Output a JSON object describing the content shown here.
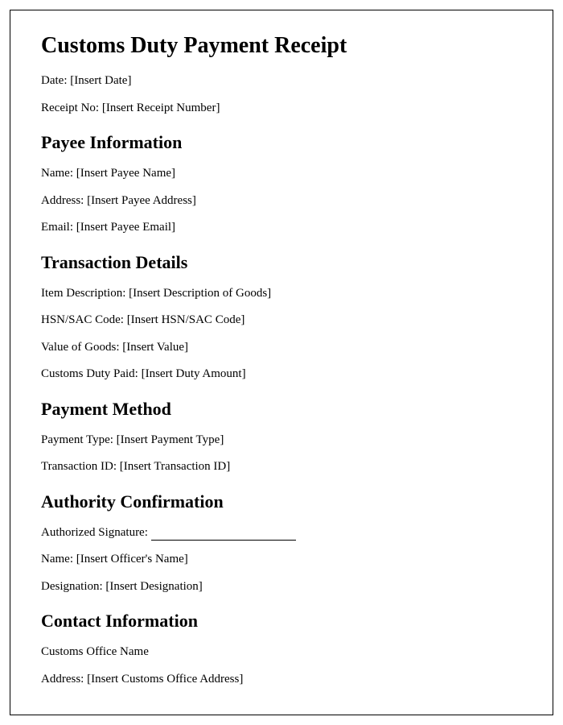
{
  "document": {
    "title": "Customs Duty Payment Receipt",
    "header": {
      "date_label": "Date: ",
      "date_value": "[Insert Date]",
      "receipt_no_label": "Receipt No: ",
      "receipt_no_value": "[Insert Receipt Number]"
    },
    "sections": {
      "payee": {
        "heading": "Payee Information",
        "name_label": "Name: ",
        "name_value": "[Insert Payee Name]",
        "address_label": "Address: ",
        "address_value": "[Insert Payee Address]",
        "email_label": "Email: ",
        "email_value": "[Insert Payee Email]"
      },
      "transaction": {
        "heading": "Transaction Details",
        "item_desc_label": "Item Description: ",
        "item_desc_value": "[Insert Description of Goods]",
        "hsn_label": "HSN/SAC Code: ",
        "hsn_value": "[Insert HSN/SAC Code]",
        "value_label": "Value of Goods: ",
        "value_value": "[Insert Value]",
        "duty_label": "Customs Duty Paid: ",
        "duty_value": "[Insert Duty Amount]"
      },
      "payment": {
        "heading": "Payment Method",
        "type_label": "Payment Type: ",
        "type_value": "[Insert Payment Type]",
        "txn_label": "Transaction ID: ",
        "txn_value": "[Insert Transaction ID]"
      },
      "authority": {
        "heading": "Authority Confirmation",
        "signature_label": "Authorized Signature: ",
        "name_label": "Name: ",
        "name_value": "[Insert Officer's Name]",
        "designation_label": "Designation: ",
        "designation_value": "[Insert Designation]"
      },
      "contact": {
        "heading": "Contact Information",
        "office_name": "Customs Office Name",
        "address_label": "Address: ",
        "address_value": "[Insert Customs Office Address]"
      }
    }
  },
  "styling": {
    "font_family": "Times New Roman",
    "title_fontsize": 28,
    "heading_fontsize": 22,
    "body_fontsize": 15,
    "text_color": "#000000",
    "background_color": "#ffffff",
    "border_color": "#000000",
    "signature_line_width": 180
  }
}
